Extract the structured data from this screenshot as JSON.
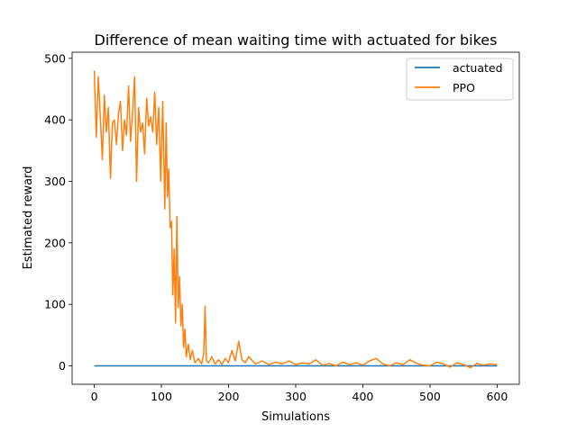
{
  "chart_data": {
    "type": "line",
    "title": "Difference of mean waiting time with actuated for bikes",
    "xlabel": "Simulations",
    "ylabel": "Estimated reward",
    "xlim": [
      -33,
      633
    ],
    "ylim": [
      -30,
      510
    ],
    "x_ticks": [
      0,
      100,
      200,
      300,
      400,
      500,
      600
    ],
    "y_ticks": [
      0,
      100,
      200,
      300,
      400,
      500
    ],
    "grid": false,
    "legend_position": "top-right",
    "series": [
      {
        "name": "actuated",
        "color": "#1f77b4",
        "x": [
          0,
          600
        ],
        "y": [
          0,
          0
        ]
      },
      {
        "name": "PPO",
        "color": "#ff7f0e",
        "x": [
          0,
          3,
          6,
          9,
          12,
          15,
          18,
          21,
          24,
          27,
          30,
          33,
          36,
          39,
          42,
          45,
          48,
          51,
          54,
          57,
          60,
          63,
          66,
          69,
          72,
          75,
          78,
          81,
          84,
          87,
          90,
          93,
          96,
          99,
          102,
          105,
          107,
          109,
          111,
          113,
          115,
          117,
          119,
          121,
          123,
          125,
          127,
          129,
          131,
          133,
          135,
          137,
          140,
          143,
          146,
          150,
          155,
          160,
          163,
          165,
          167,
          170,
          175,
          180,
          185,
          190,
          195,
          200,
          205,
          210,
          215,
          220,
          225,
          230,
          240,
          250,
          260,
          270,
          280,
          290,
          300,
          310,
          320,
          330,
          340,
          350,
          360,
          370,
          380,
          390,
          400,
          410,
          420,
          430,
          440,
          450,
          460,
          470,
          480,
          490,
          500,
          510,
          520,
          530,
          540,
          550,
          560,
          570,
          580,
          590,
          600
        ],
        "y": [
          480,
          372,
          470,
          405,
          335,
          440,
          380,
          420,
          305,
          395,
          400,
          360,
          410,
          430,
          350,
          400,
          375,
          455,
          365,
          410,
          470,
          300,
          420,
          380,
          395,
          345,
          435,
          390,
          405,
          380,
          445,
          360,
          420,
          300,
          430,
          255,
          395,
          275,
          320,
          225,
          235,
          115,
          190,
          70,
          243,
          95,
          145,
          65,
          100,
          30,
          60,
          15,
          35,
          10,
          25,
          5,
          12,
          3,
          20,
          97,
          8,
          5,
          15,
          3,
          10,
          2,
          12,
          5,
          25,
          8,
          40,
          10,
          5,
          15,
          3,
          8,
          2,
          6,
          3,
          8,
          2,
          5,
          3,
          10,
          1,
          4,
          0,
          6,
          2,
          5,
          1,
          8,
          12,
          3,
          0,
          5,
          2,
          10,
          4,
          1,
          0,
          6,
          3,
          -2,
          5,
          2,
          -3,
          4,
          1,
          3,
          2
        ]
      }
    ]
  }
}
